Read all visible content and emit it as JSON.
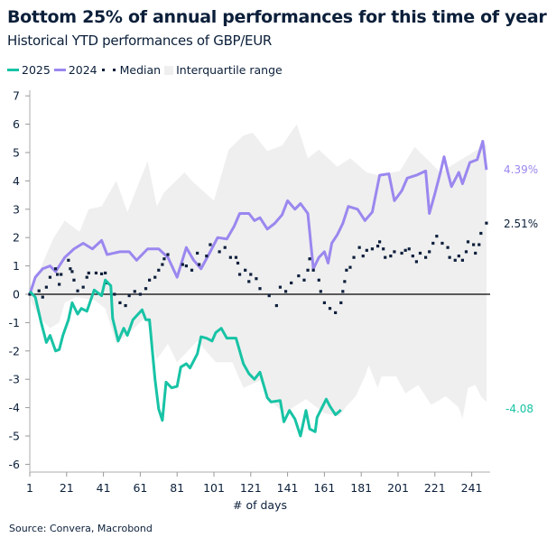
{
  "title": "Bottom 25% of annual performances for this time of year",
  "subtitle": "Historical YTD performances of GBP/EUR",
  "source": "Source: Convera, Macrobond",
  "legend": [
    {
      "label": "2025",
      "color": "#17c3a5",
      "kind": "line"
    },
    {
      "label": "2024",
      "color": "#9b87ef",
      "kind": "line"
    },
    {
      "label": "Median",
      "color": "#0d1f3c",
      "kind": "dots"
    },
    {
      "label": "Interquartile range",
      "color": "#efefef",
      "kind": "area"
    }
  ],
  "end_labels": {
    "s2024": "4.39%",
    "median": "2.51%",
    "s2025": "-4.08"
  },
  "chart_data": {
    "type": "line",
    "title": "Bottom 25% of annual performances for this time of year",
    "subtitle": "Historical YTD performances of GBP/EUR",
    "xlabel": "# of days",
    "ylabel": "",
    "xlim": [
      1,
      251
    ],
    "ylim": [
      -6,
      7
    ],
    "xticks": [
      "1",
      "21",
      "41",
      "61",
      "81",
      "101",
      "121",
      "141",
      "161",
      "181",
      "201",
      "221",
      "241"
    ],
    "yticks": [
      "7",
      "6",
      "5",
      "4",
      "3",
      "2",
      "1",
      "0",
      "-1",
      "-2",
      "-3",
      "-4",
      "-5",
      "-6"
    ],
    "grid": false,
    "legend_position": "top-left",
    "series": [
      {
        "name": "2025",
        "color": "#17c3a5",
        "x": [
          1,
          4,
          7,
          10,
          12,
          15,
          17,
          19,
          22,
          24,
          27,
          29,
          32,
          36,
          40,
          42,
          45,
          46,
          49,
          52,
          54,
          57,
          62,
          64,
          66,
          69,
          71,
          73,
          75,
          78,
          81,
          83,
          86,
          88,
          92,
          94,
          97,
          100,
          102,
          105,
          108,
          113,
          117,
          120,
          123,
          126,
          130,
          132,
          137,
          139,
          142,
          145,
          148,
          151,
          153,
          156,
          157,
          162,
          164,
          167,
          170
        ],
        "y": [
          0.1,
          -0.1,
          -0.95,
          -1.7,
          -1.45,
          -2.0,
          -1.95,
          -1.45,
          -0.9,
          -0.3,
          -0.7,
          -0.5,
          -0.6,
          0.15,
          -0.05,
          0.5,
          0.3,
          -0.85,
          -1.65,
          -1.2,
          -1.45,
          -0.9,
          -0.55,
          -0.9,
          -0.9,
          -3.0,
          -4.05,
          -4.45,
          -3.1,
          -3.3,
          -3.25,
          -2.57,
          -2.45,
          -2.6,
          -2.1,
          -1.5,
          -1.55,
          -1.65,
          -1.35,
          -1.2,
          -1.55,
          -1.55,
          -2.45,
          -2.8,
          -3.0,
          -2.75,
          -3.65,
          -3.8,
          -3.75,
          -4.5,
          -4.1,
          -4.4,
          -5.0,
          -4.1,
          -4.75,
          -4.85,
          -4.35,
          -3.7,
          -3.95,
          -4.25,
          -4.08
        ]
      },
      {
        "name": "2024",
        "color": "#9b87ef",
        "x": [
          1,
          4,
          8,
          12,
          15,
          20,
          25,
          30,
          35,
          40,
          43,
          50,
          55,
          59,
          65,
          71,
          76,
          81,
          86,
          90,
          94,
          99,
          103,
          108,
          112,
          115,
          120,
          123,
          126,
          130,
          134,
          138,
          141,
          145,
          148,
          152,
          155,
          158,
          161,
          163,
          165,
          168,
          171,
          174,
          179,
          183,
          187,
          191,
          196,
          199,
          203,
          206,
          211,
          216,
          218,
          221,
          224,
          226,
          228,
          230,
          234,
          236,
          240,
          244,
          247,
          249
        ],
        "y": [
          0,
          0.6,
          0.9,
          1.0,
          0.8,
          1.3,
          1.6,
          1.8,
          1.6,
          1.9,
          1.4,
          1.5,
          1.5,
          1.2,
          1.6,
          1.6,
          1.3,
          0.6,
          1.65,
          1.2,
          0.9,
          1.5,
          2.0,
          1.95,
          2.4,
          2.85,
          2.85,
          2.6,
          2.7,
          2.3,
          2.5,
          2.8,
          3.3,
          3.0,
          3.2,
          2.85,
          0.9,
          1.3,
          1.5,
          1.1,
          1.8,
          2.1,
          2.5,
          3.1,
          3.0,
          2.6,
          2.9,
          4.2,
          4.25,
          3.3,
          3.65,
          4.1,
          4.2,
          4.35,
          2.85,
          3.55,
          4.3,
          4.85,
          4.3,
          3.8,
          4.3,
          3.9,
          4.65,
          4.75,
          5.4,
          4.39
        ]
      },
      {
        "name": "Median",
        "color": "#0d1f3c",
        "kind": "dots",
        "x": [
          1,
          6,
          8,
          10,
          12,
          15,
          16,
          17,
          18,
          22,
          23,
          24,
          25,
          27,
          30,
          32,
          33,
          37,
          40,
          42,
          43,
          47,
          50,
          53,
          55,
          58,
          61,
          64,
          66,
          69,
          71,
          73,
          74,
          76,
          84,
          86,
          89,
          92,
          93,
          97,
          99,
          104,
          107,
          110,
          113,
          114,
          115,
          118,
          120,
          121,
          124,
          126,
          131,
          135,
          137,
          140,
          143,
          147,
          150,
          152,
          153,
          155,
          158,
          159,
          161,
          164,
          167,
          170,
          171,
          172,
          173,
          175,
          177,
          180,
          182,
          184,
          187,
          190,
          191,
          193,
          194,
          197,
          199,
          203,
          205,
          207,
          209,
          211,
          213,
          216,
          218,
          220,
          222,
          225,
          228,
          229,
          232,
          234,
          236,
          238,
          239,
          242,
          243,
          245,
          246,
          249
        ],
        "y": [
          0,
          0.12,
          -0.1,
          0.25,
          0.6,
          0.9,
          0.7,
          0.35,
          0.7,
          1.2,
          0.9,
          0.8,
          0.5,
          0.12,
          0.25,
          0.6,
          0.75,
          0.75,
          0.72,
          0.75,
          0.4,
          0.0,
          -0.3,
          -0.4,
          -0.05,
          0.1,
          0.0,
          0.2,
          0.5,
          0.6,
          0.85,
          1.05,
          1.25,
          1.4,
          1.05,
          1.0,
          0.85,
          1.45,
          1.05,
          1.35,
          1.75,
          1.5,
          1.65,
          1.3,
          1.3,
          1.1,
          0.7,
          0.85,
          0.45,
          0.7,
          0.55,
          0.2,
          -0.05,
          -0.4,
          0.25,
          0.1,
          0.4,
          0.65,
          0.5,
          0.85,
          1.25,
          0.85,
          0.5,
          0.1,
          -0.3,
          -0.5,
          -0.65,
          -0.3,
          0.1,
          0.45,
          0.85,
          0.95,
          1.3,
          1.65,
          1.35,
          1.55,
          1.6,
          1.7,
          1.85,
          1.6,
          1.3,
          1.35,
          1.5,
          1.45,
          1.55,
          1.6,
          1.35,
          1.15,
          1.45,
          1.3,
          1.5,
          1.8,
          2.05,
          1.8,
          1.65,
          1.3,
          1.2,
          1.35,
          1.2,
          1.5,
          1.85,
          1.75,
          1.45,
          1.75,
          2.15,
          2.51
        ]
      },
      {
        "name": "Interquartile range",
        "color": "#efefef",
        "kind": "band",
        "upper_x": [
          1,
          6,
          14,
          20,
          28,
          33,
          40,
          48,
          54,
          65,
          70,
          74,
          85,
          89,
          101,
          109,
          117,
          122,
          130,
          138,
          146,
          152,
          158,
          168,
          175,
          184,
          190,
          202,
          210,
          224,
          234,
          244,
          249
        ],
        "upper_y": [
          0,
          0.8,
          2.0,
          2.6,
          2.2,
          3.0,
          3.1,
          4.0,
          2.9,
          4.7,
          3.1,
          3.6,
          4.3,
          4.0,
          3.3,
          5.1,
          5.6,
          5.7,
          5.05,
          5.25,
          6.0,
          4.8,
          5.1,
          4.5,
          4.8,
          4.3,
          4.2,
          4.35,
          5.2,
          4.3,
          4.7,
          5.1,
          5.3
        ],
        "lower_x": [
          1,
          2,
          6,
          12,
          17,
          20,
          26,
          36,
          42,
          48,
          56,
          64,
          70,
          76,
          81,
          92,
          102,
          111,
          117,
          126,
          131,
          139,
          151,
          161,
          169,
          173,
          178,
          183,
          185,
          190,
          192,
          200,
          205,
          212,
          219,
          227,
          234,
          236,
          239,
          243,
          246,
          249
        ],
        "lower_y": [
          0,
          -0.3,
          -0.8,
          -1.2,
          -1.0,
          -0.3,
          -0.1,
          -0.2,
          -0.5,
          -1.75,
          -1.3,
          -0.8,
          -2.3,
          -1.75,
          -2.4,
          -1.65,
          -2.4,
          -2.4,
          -3.3,
          -3.05,
          -3.7,
          -4.2,
          -3.7,
          -4.2,
          -4.3,
          -3.95,
          -3.6,
          -2.9,
          -2.5,
          -3.3,
          -2.9,
          -2.9,
          -3.5,
          -3.2,
          -3.9,
          -3.6,
          -4.0,
          -4.4,
          -3.3,
          -3.2,
          -3.6,
          -3.8
        ]
      }
    ]
  }
}
